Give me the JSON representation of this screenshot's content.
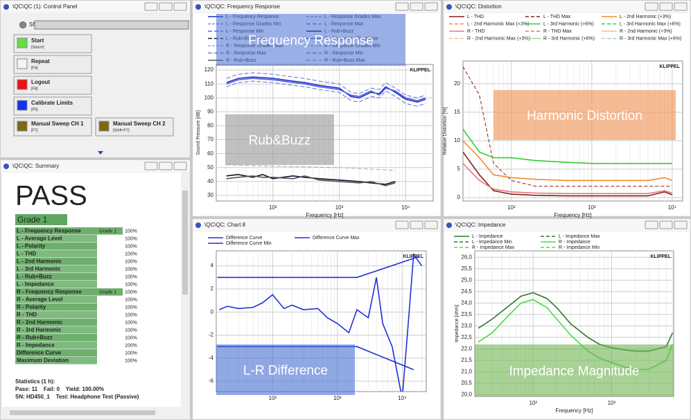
{
  "control_panel": {
    "title": "\\QC\\QC (1): Control Panel",
    "sn_label": "SN",
    "buttons": [
      {
        "label": "Start",
        "key": "[Space]",
        "color": "#66dd44"
      },
      {
        "label": "Repeat",
        "key": "[F4]",
        "color": "#f4f4f4"
      },
      {
        "label": "Logout",
        "key": "[F8]",
        "color": "#ee1111"
      },
      {
        "label": "Calibrate Limits",
        "key": "[F5]",
        "color": "#1133ee"
      },
      {
        "label": "Manual Sweep CH 1",
        "key": "[F7]",
        "color": "#7a6a10"
      },
      {
        "label": "Manual Sweep CH 2",
        "key": "[Shift+F7]",
        "color": "#7a6a10"
      }
    ]
  },
  "summary": {
    "title": "\\QC\\QC: Summary",
    "result": "PASS",
    "grade": "Grade 1",
    "rows": [
      {
        "name": "L - Frequency Response",
        "grade": "Grade 1",
        "percent": "100%"
      },
      {
        "name": "L - Average Level",
        "percent": "100%"
      },
      {
        "name": "L - Polarity",
        "percent": "100%"
      },
      {
        "name": "L - THD",
        "percent": "100%"
      },
      {
        "name": "L - 2nd Harmonic",
        "percent": "100%"
      },
      {
        "name": "L - 3rd Harmonic",
        "percent": "100%"
      },
      {
        "name": "L - Rub+Buzz",
        "percent": "100%"
      },
      {
        "name": "L - Impedance",
        "percent": "100%"
      },
      {
        "name": "R - Frequency Response",
        "grade": "Grade 1",
        "percent": "100%"
      },
      {
        "name": "R - Average Level",
        "percent": "100%"
      },
      {
        "name": "R - Polarity",
        "percent": "100%"
      },
      {
        "name": "R - THD",
        "percent": "100%"
      },
      {
        "name": "R - 2nd Harmonic",
        "percent": "100%"
      },
      {
        "name": "R - 3rd Harmonic",
        "percent": "100%"
      },
      {
        "name": "R - Rub+Buzz",
        "percent": "100%"
      },
      {
        "name": "R - Impedance",
        "percent": "100%"
      },
      {
        "name": "Difference Curve",
        "percent": "100%"
      },
      {
        "name": "Maximum Deviation",
        "percent": "100%"
      }
    ],
    "statistics": [
      "Statistics (1 h):",
      "Pass: 11    Fail: 0    Yield: 100.00%",
      "SN: HD450_1    Test: Headphone Test (Passive)"
    ]
  },
  "charts": [
    {
      "type": "line",
      "title": "\\QC\\QC: Frequency Response",
      "logo": "KLIPPEL",
      "xlabel": "Frequency [Hz]",
      "ylabel": "Sound Pressure [dB]",
      "log_x": true,
      "grid": true,
      "xlim": [
        14,
        26000
      ],
      "ylim": [
        26,
        124
      ],
      "xticks": [
        {
          "value": 100,
          "label": "10²"
        },
        {
          "value": 1000,
          "label": "10³"
        },
        {
          "value": 10000,
          "label": "10⁴"
        }
      ],
      "yticks": [
        30,
        40,
        50,
        60,
        70,
        80,
        90,
        100,
        110,
        120
      ],
      "overlays": [
        "Frequency Response",
        "Rub&Buzz"
      ],
      "series": [
        {
          "name": "L - Frequency Response",
          "color": "#1f2fc8",
          "x": [
            20,
            30,
            50,
            100,
            200,
            300,
            500,
            1000,
            1500,
            2000,
            3000,
            4000,
            5000,
            7000,
            10000,
            15000,
            20000
          ],
          "values": [
            111,
            114,
            115,
            114,
            112,
            111,
            109,
            107,
            101,
            100,
            104,
            103,
            108,
            104,
            99,
            97,
            99
          ]
        },
        {
          "name": "L - Response Grades Max",
          "color": "#7f8fe6",
          "dash": "4,2"
        },
        {
          "name": "L - Response Grades Min",
          "color": "#7f8fe6",
          "dash": "4,2"
        },
        {
          "name": "L - Response Max",
          "color": "#5a6ee0",
          "dash": "6,3",
          "x": [
            20,
            30,
            50,
            100,
            200,
            300,
            500,
            1000,
            1500,
            2000,
            3000,
            4000,
            5000,
            7000,
            10000,
            15000,
            20000
          ],
          "values": [
            114,
            117,
            118,
            117,
            115,
            114,
            112,
            110,
            104,
            103,
            107,
            106,
            111,
            107,
            102,
            100,
            102
          ]
        },
        {
          "name": "L - Response Min",
          "color": "#5a6ee0",
          "dash": "6,3",
          "x": [
            20,
            30,
            50,
            100,
            200,
            300,
            500,
            1000,
            1500,
            2000,
            3000,
            4000,
            5000,
            7000,
            10000,
            15000,
            20000
          ],
          "values": [
            108,
            111,
            112,
            111,
            109,
            108,
            106,
            104,
            98,
            97,
            101,
            100,
            105,
            101,
            96,
            94,
            96
          ]
        },
        {
          "name": "L - Rub+Buzz",
          "color": "#111133",
          "x": [
            20,
            30,
            50,
            70,
            100,
            200,
            300,
            500,
            1000,
            2000,
            3000,
            5000,
            7000
          ],
          "values": [
            44,
            45,
            43,
            45,
            42,
            44,
            43,
            42,
            41,
            40,
            39,
            38,
            40
          ]
        },
        {
          "name": "L - Rub+Buzz Max",
          "color": "#222222",
          "dash": "6,3"
        },
        {
          "name": "R - Frequency Response",
          "color": "#5060dd",
          "x": [
            20,
            30,
            50,
            100,
            200,
            300,
            500,
            1000,
            1500,
            2000,
            3000,
            4000,
            5000,
            7000,
            10000,
            15000,
            20000
          ],
          "values": [
            110,
            113,
            114,
            113,
            111,
            110,
            108,
            106,
            102,
            101,
            105,
            102,
            107,
            105,
            100,
            98,
            100
          ]
        },
        {
          "name": "R - Response Grades Max",
          "color": "#9aa6ee",
          "dash": "4,2"
        },
        {
          "name": "R - Response Grades Min",
          "color": "#9aa6ee",
          "dash": "4,2"
        },
        {
          "name": "R - Response Max",
          "color": "#6a7be2",
          "dash": "6,3"
        },
        {
          "name": "R - Response Min",
          "color": "#6a7be2",
          "dash": "6,3"
        },
        {
          "name": "R - Rub+Buzz",
          "color": "#555555",
          "x": [
            20,
            30,
            50,
            70,
            100,
            200,
            300,
            500,
            1000,
            2000,
            3000,
            5000,
            7000
          ],
          "values": [
            42,
            43,
            44,
            43,
            43,
            42,
            44,
            41,
            40,
            39,
            40,
            37,
            39
          ]
        },
        {
          "name": "R - Rub+Buzz Max",
          "color": "#aaaaaa",
          "dash": "6,3",
          "x": [
            20,
            100,
            1000,
            7000
          ],
          "values": [
            52,
            51,
            50,
            48
          ]
        }
      ]
    },
    {
      "type": "line",
      "title": "\\QC\\QC: Distortion",
      "logo": "KLIPPEL",
      "xlabel": "Frequency [Hz]",
      "ylabel": "Relative Distortion [%]",
      "log_x": true,
      "grid": true,
      "xlim": [
        25,
        13500
      ],
      "ylim": [
        -0.6,
        24
      ],
      "xticks": [
        {
          "value": 100,
          "label": "10²"
        },
        {
          "value": 1000,
          "label": "10³"
        },
        {
          "value": 10000,
          "label": "10⁴"
        }
      ],
      "yticks": [
        0,
        5,
        10,
        15,
        20
      ],
      "overlays": [
        "Harmonic Distortion"
      ],
      "series": [
        {
          "name": "L - THD",
          "color": "#8b1a1a",
          "x": [
            25,
            40,
            60,
            100,
            200,
            500,
            1000,
            2000,
            5000,
            8000,
            10000
          ],
          "values": [
            8,
            4,
            1.2,
            0.6,
            0.4,
            0.3,
            0.3,
            0.3,
            0.3,
            1,
            0.5
          ]
        },
        {
          "name": "L - THD Max",
          "color": "#8b1a1a",
          "dash": "5,3",
          "x": [
            25,
            40,
            60,
            100,
            200,
            500,
            1000,
            2000,
            5000,
            8000,
            10000
          ],
          "values": [
            23,
            18,
            6,
            3,
            2,
            2,
            2,
            2,
            2,
            2,
            2
          ]
        },
        {
          "name": "L - 2nd Harmonic (+3%)",
          "color": "#f08c28",
          "x": [
            25,
            40,
            60,
            100,
            200,
            500,
            1000,
            2000,
            5000,
            8000,
            10000
          ],
          "values": [
            10,
            7,
            4,
            3.5,
            3.2,
            3,
            3,
            3,
            3,
            3.5,
            3
          ]
        },
        {
          "name": "L - 2nd Harmonic Max (+3%)",
          "color": "#f08c28",
          "dash": "5,3"
        },
        {
          "name": "L - 3rd Harmonic (+6%)",
          "color": "#33cc33",
          "x": [
            25,
            40,
            60,
            100,
            200,
            500,
            1000,
            2000,
            5000,
            8000,
            10000
          ],
          "values": [
            12,
            8,
            7,
            7,
            6.5,
            6.2,
            6,
            6,
            6,
            6,
            6
          ]
        },
        {
          "name": "L - 3rd Harmonic Max (+6%)",
          "color": "#33cc33",
          "dash": "5,3"
        },
        {
          "name": "R - THD",
          "color": "#e07a7a",
          "x": [
            25,
            40,
            60,
            100,
            200,
            500,
            1000,
            2000,
            5000,
            8000,
            10000
          ],
          "values": [
            6,
            3,
            1.5,
            1,
            0.8,
            0.7,
            0.7,
            0.7,
            0.7,
            1.2,
            0.8
          ]
        },
        {
          "name": "R - THD Max",
          "color": "#e07a7a",
          "dash": "5,3"
        },
        {
          "name": "R - 2nd Harmonic (+3%)",
          "color": "#f5c08a"
        },
        {
          "name": "R - 2nd Harmonic Max (+3%)",
          "color": "#f5c08a",
          "dash": "5,3"
        },
        {
          "name": "R - 3rd Harmonic (+6%)",
          "color": "#99e099"
        },
        {
          "name": "R - 3rd Harmonic Max (+6%)",
          "color": "#99e099",
          "dash": "5,3"
        }
      ]
    },
    {
      "type": "line",
      "title": "\\QC\\QC: Chart 8",
      "logo": "KLIPPEL",
      "log_x": true,
      "grid": true,
      "xlim": [
        13.5,
        23500
      ],
      "ylim": [
        -6.9,
        5.3
      ],
      "xticks": [
        {
          "value": 100,
          "label": "10²"
        },
        {
          "value": 1000,
          "label": "10³"
        },
        {
          "value": 10000,
          "label": "10⁴"
        }
      ],
      "yticks": [
        -6,
        -4,
        -2,
        0,
        2,
        4
      ],
      "overlays": [
        "L-R Difference"
      ],
      "series": [
        {
          "name": "Difference Curve",
          "color": "#1f2fd8",
          "x": [
            15,
            20,
            30,
            50,
            70,
            100,
            150,
            200,
            300,
            500,
            700,
            1000,
            1500,
            2000,
            3000,
            4000,
            5000,
            7000,
            10000,
            12000,
            15000,
            20000
          ],
          "values": [
            0.2,
            0.5,
            0.3,
            0.4,
            0.8,
            1.5,
            0.3,
            0.6,
            0.2,
            0.3,
            -0.5,
            -1,
            -1.8,
            0.2,
            -0.5,
            3,
            -1,
            -3,
            -7.5,
            -2,
            5,
            4
          ]
        },
        {
          "name": "Difference Curve Max",
          "color": "#1f2fd8",
          "x": [
            14,
            2000,
            18000
          ],
          "values": [
            3,
            3,
            4.8
          ]
        },
        {
          "name": "Difference Curve Min",
          "color": "#1f2fd8",
          "x": [
            14,
            2000,
            15000
          ],
          "values": [
            -3,
            -3,
            -5
          ]
        }
      ]
    },
    {
      "type": "line",
      "title": "\\QC\\QC: Impedance",
      "logo": "KLIPPEL",
      "xlabel": "Frequency [Hz]",
      "ylabel": "Impedance [ohm]",
      "log_x": true,
      "grid": true,
      "xlim": [
        18,
        6200
      ],
      "ylim": [
        19.92,
        26.28
      ],
      "xticks": [
        {
          "value": 100,
          "label": "10²"
        },
        {
          "value": 1000,
          "label": "10³"
        }
      ],
      "yticks": [
        {
          "value": 20,
          "label": "20,0"
        },
        {
          "value": 20.5,
          "label": "20,5"
        },
        {
          "value": 21,
          "label": "21,0"
        },
        {
          "value": 21.5,
          "label": "21,5"
        },
        {
          "value": 22,
          "label": "22,0"
        },
        {
          "value": 22.5,
          "label": "22,5"
        },
        {
          "value": 23,
          "label": "23,0"
        },
        {
          "value": 23.5,
          "label": "23,5"
        },
        {
          "value": 24,
          "label": "24,0"
        },
        {
          "value": 24.5,
          "label": "24,5"
        },
        {
          "value": 25,
          "label": "25,0"
        },
        {
          "value": 25.5,
          "label": "25,5"
        },
        {
          "value": 26,
          "label": "26,0"
        }
      ],
      "overlays": [
        "Impedance Magnitude"
      ],
      "series": [
        {
          "name": "L - Impedance",
          "color": "#2a7a2a",
          "x": [
            20,
            30,
            50,
            70,
            100,
            150,
            200,
            300,
            500,
            700,
            1000,
            1500,
            2000,
            3000,
            5000,
            6000
          ],
          "values": [
            22.9,
            23.3,
            23.9,
            24.3,
            24.45,
            24.2,
            23.8,
            23.1,
            22.5,
            22.2,
            22.05,
            21.95,
            21.9,
            21.9,
            22.1,
            22.7
          ]
        },
        {
          "name": "L - Impedance Max",
          "color": "#2a7a2a",
          "dash": "5,3"
        },
        {
          "name": "L - Impedance Min",
          "color": "#2a7a2a",
          "dash": "5,3"
        },
        {
          "name": "R - Impedance",
          "color": "#44dd44",
          "x": [
            20,
            30,
            50,
            70,
            100,
            150,
            200,
            300,
            500,
            700,
            1000,
            1500,
            2000,
            3000,
            5000,
            6000
          ],
          "values": [
            22.3,
            22.7,
            23.5,
            24.0,
            24.15,
            23.8,
            23.3,
            22.6,
            21.9,
            21.6,
            21.4,
            21.2,
            21.1,
            21.1,
            21.5,
            22.2
          ]
        },
        {
          "name": "R - Impedance Max",
          "color": "#44dd44",
          "dash": "5,3"
        },
        {
          "name": "R - Impedance Min",
          "color": "#44dd44",
          "dash": "5,3"
        }
      ]
    }
  ]
}
